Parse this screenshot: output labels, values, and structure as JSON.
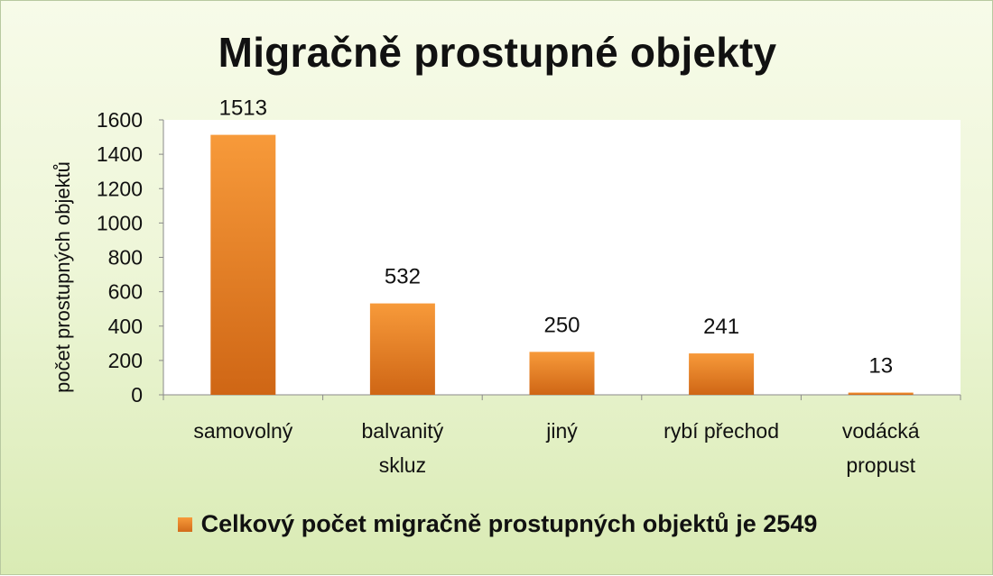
{
  "chart_data": {
    "type": "bar",
    "title": "Migračně prostupné objekty",
    "ylabel": "počet prostupných objektů",
    "xlabel": "",
    "categories": [
      [
        "samovolný"
      ],
      [
        "balvanitý",
        "skluz"
      ],
      [
        "jiný"
      ],
      [
        "rybí přechod"
      ],
      [
        "vodácká",
        "propust"
      ]
    ],
    "values": [
      1513,
      532,
      250,
      241,
      13
    ],
    "ylim": [
      0,
      1600
    ],
    "yticks": [
      "0",
      "200",
      "400",
      "600",
      "800",
      "1000",
      "1200",
      "1400",
      "1600"
    ],
    "data_labels": [
      "1513",
      "532",
      "250",
      "241",
      "13"
    ],
    "legend": {
      "text": "Celkový počet migračně prostupných objektů je  2549",
      "placement": "bottom"
    },
    "grid": false,
    "colors": {
      "bar_top": "#f79a3a",
      "bar_bottom": "#cf6615",
      "plot_bg": "#ffffff",
      "page_bg": "#eef6d8"
    }
  }
}
